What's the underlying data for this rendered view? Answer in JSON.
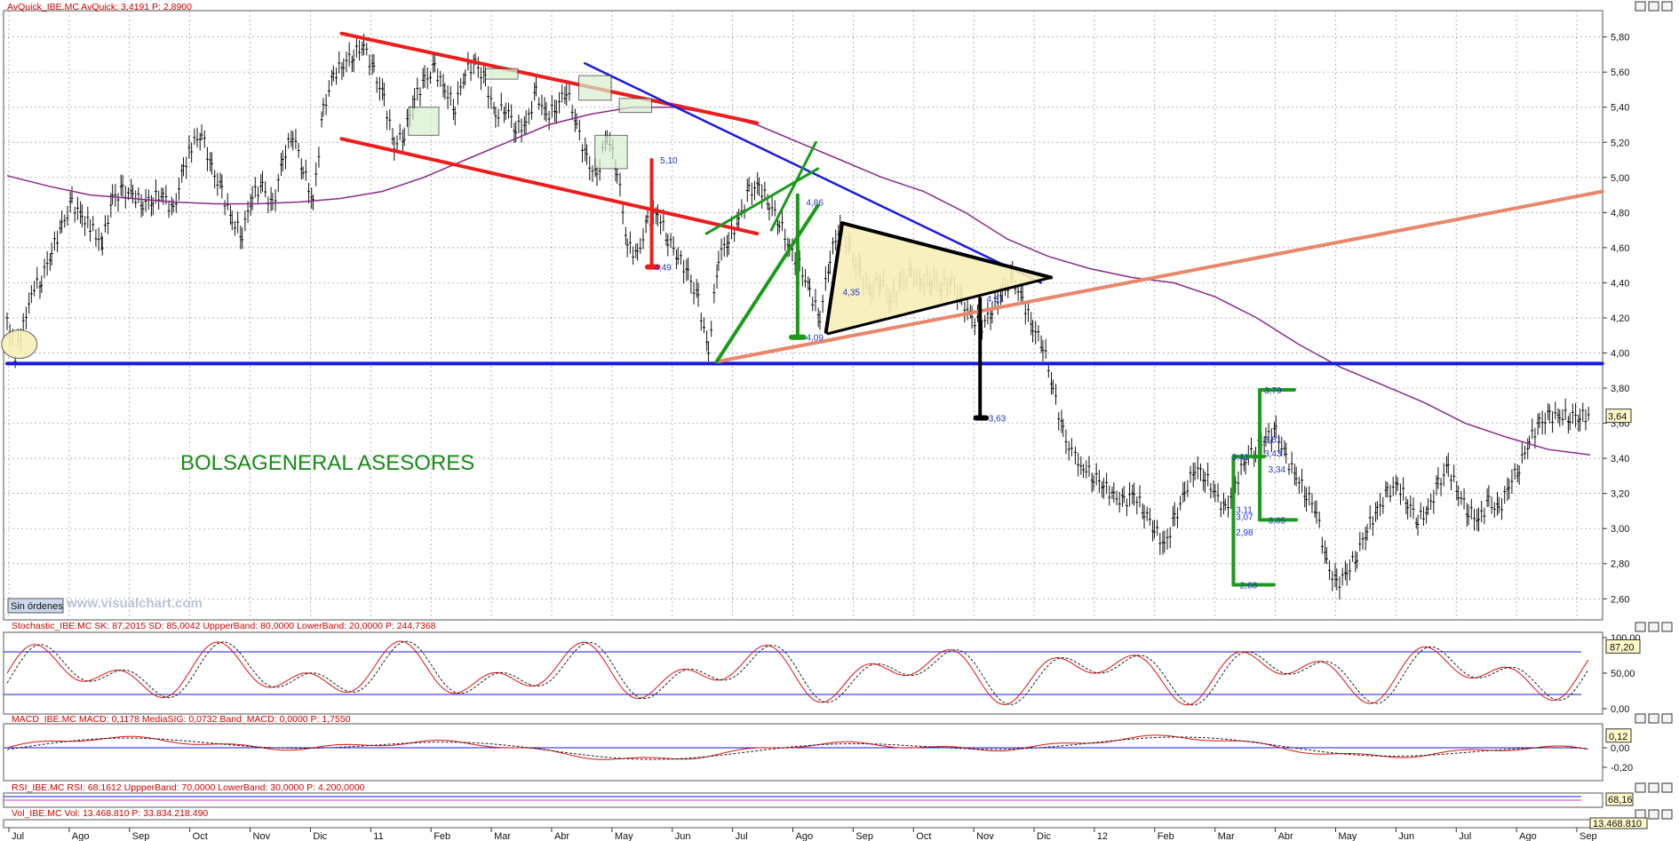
{
  "header": {
    "main": "AvQuick_IBE.MC  AvQuick: 3,4191  P: 2,8900",
    "stoch": "Stochastic_IBE.MC  SK: 87,2015  SD: 85,0042  UppperBand: 80,0000  LowerBand: 20,0000  P: 244,7368",
    "macd": "MACD_IBE.MC  MACD: 0,1178  MediaSIG: 0,0732  Band_MACD: 0,0000  P: 1,7550",
    "rsi": "RSI_IBE.MC  RSI: 68,1612  UppperBand: 70,0000  LowerBand: 30,0000  P: 4.200,0000",
    "vol": "Vol_IBE.MC  Vol: 13.468.810  P: 33.834.218.490"
  },
  "brand_text": "BOLSAGENERAL ASESORES",
  "watermark": "www.visualchart.com",
  "button_label": "Sin órdenes",
  "colors": {
    "price": "#111111",
    "avg": "#8a2a8a",
    "red": "#ee1c1c",
    "blue": "#1a1ae0",
    "green": "#1a9a1a",
    "salmon": "#e8876a",
    "black": "#000000",
    "stoch_k": "#dd1111",
    "band": "#1a1ae0"
  },
  "chart_data": {
    "type": "line",
    "title": "",
    "xlabel": "",
    "ylabel": "",
    "ylim": [
      2.48,
      5.95
    ],
    "y_ticks": [
      "5,80",
      "5,60",
      "5,40",
      "5,20",
      "5,00",
      "4,80",
      "4,60",
      "4,40",
      "4,20",
      "4,00",
      "3,80",
      "3,60",
      "3,40",
      "3,20",
      "3,00",
      "2,80",
      "2,60"
    ],
    "x_ticks": [
      "Jul",
      "Ago",
      "Sep",
      "Oct",
      "Nov",
      "Dic",
      "11",
      "Feb",
      "Mar",
      "Abr",
      "May",
      "Jun",
      "Jul",
      "Ago",
      "Sep",
      "Oct",
      "Nov",
      "Dic",
      "12",
      "Feb",
      "Mar",
      "Abr",
      "May",
      "Jun",
      "Jul",
      "Ago",
      "Sep"
    ],
    "grid": true,
    "last_price_label": "3,64",
    "series": [
      {
        "x": [
          0,
          4,
          8,
          12,
          17,
          22,
          27,
          32,
          37,
          41,
          47,
          52,
          57,
          62,
          67,
          72,
          77,
          82,
          87,
          91,
          96,
          101,
          106,
          111,
          116,
          121,
          126,
          131,
          136,
          141,
          146,
          151,
          156,
          161,
          166,
          171,
          176,
          181,
          186,
          191,
          196,
          201,
          206,
          211,
          216,
          221,
          226,
          231,
          236,
          241,
          246,
          251,
          256,
          261,
          266,
          271,
          276,
          281,
          286,
          291,
          296,
          301,
          306,
          311,
          316,
          321,
          326,
          331,
          336,
          341,
          346,
          351,
          356,
          361,
          366,
          371,
          376,
          381,
          386,
          391,
          396,
          401,
          406,
          411,
          416,
          421,
          426,
          431,
          436,
          441,
          446,
          451,
          456,
          461,
          466,
          471,
          476,
          481,
          486,
          491,
          496,
          501,
          506,
          511,
          516,
          521,
          526
        ],
        "values": [
          4.2,
          3.98,
          4.15,
          4.35,
          4.42,
          4.58,
          4.72,
          4.85,
          4.78,
          4.72,
          4.62,
          4.88,
          4.92,
          4.9,
          4.85,
          4.88,
          4.9,
          4.8,
          5.05,
          5.18,
          5.25,
          5.05,
          4.92,
          4.75,
          4.68,
          4.9,
          4.95,
          4.82,
          5.1,
          5.25,
          5.05,
          4.86,
          5.38,
          5.58,
          5.65,
          5.7,
          5.75,
          5.6,
          5.45,
          5.18,
          5.25,
          5.45,
          5.55,
          5.62,
          5.5,
          5.4,
          5.6,
          5.65,
          5.55,
          5.35,
          5.4,
          5.28,
          5.3,
          5.48,
          5.35,
          5.4,
          5.5,
          5.3,
          5.1,
          5.0,
          5.25,
          5.05,
          4.62,
          4.55,
          4.75,
          4.8,
          4.65,
          4.55,
          4.45,
          4.3,
          4.0,
          4.55,
          4.65,
          4.75,
          4.92,
          4.95,
          4.85,
          4.75,
          4.6,
          4.5,
          4.35,
          4.2,
          4.55,
          4.72,
          4.58,
          4.45,
          4.35,
          4.42,
          4.3,
          4.4,
          4.45,
          4.4,
          4.42,
          4.38,
          4.4,
          4.3,
          4.2,
          4.15,
          4.25,
          4.35,
          4.42,
          4.3,
          4.15,
          4.05,
          3.8,
          3.55,
          3.4
        ]
      },
      {
        "x": [
          527,
          531,
          536,
          541,
          546,
          551,
          556,
          561,
          566,
          571,
          576,
          581,
          586,
          591,
          596,
          601,
          606,
          611,
          616,
          621,
          626,
          631,
          636,
          641,
          646,
          651,
          656,
          661,
          666,
          671,
          676,
          681,
          686,
          691,
          696,
          701,
          706,
          711,
          716,
          721,
          726,
          731,
          736,
          741,
          746,
          751,
          756,
          761,
          766,
          771,
          776,
          781
        ],
        "values": [
          3.4,
          3.35,
          3.3,
          3.25,
          3.18,
          3.15,
          3.2,
          3.1,
          3.0,
          2.9,
          3.05,
          3.2,
          3.35,
          3.3,
          3.2,
          3.1,
          3.25,
          3.4,
          3.45,
          3.52,
          3.55,
          3.4,
          3.3,
          3.2,
          3.1,
          2.8,
          2.68,
          2.75,
          2.85,
          3.0,
          3.1,
          3.2,
          3.25,
          3.15,
          3.05,
          3.1,
          3.25,
          3.35,
          3.2,
          3.1,
          3.05,
          3.15,
          3.1,
          3.25,
          3.35,
          3.5,
          3.6,
          3.64,
          3.64,
          3.64,
          3.64,
          3.64
        ]
      }
    ],
    "moving_average": [
      5.01,
      4.95,
      4.9,
      4.88,
      4.86,
      4.85,
      4.85,
      4.86,
      4.88,
      4.92,
      5.0,
      5.1,
      5.2,
      5.3,
      5.36,
      5.4,
      5.4,
      5.36,
      5.3,
      5.2,
      5.1,
      5.0,
      4.92,
      4.8,
      4.65,
      4.55,
      4.48,
      4.43,
      4.4,
      4.32,
      4.2,
      4.05,
      3.92,
      3.82,
      3.72,
      3.6,
      3.52,
      3.45,
      3.42
    ],
    "annotations": [
      "5,10",
      "4,49",
      "4,86",
      "4,09",
      "4,35",
      "4,31",
      "3,63",
      "3,79",
      "3,51",
      "3,41",
      "3,43",
      "3,34",
      "3,11",
      "3,07",
      "3,05",
      "2,98",
      "2,68"
    ],
    "indicators": {
      "stochastic": {
        "upper": 80,
        "lower": 20,
        "last": "87,20",
        "ticks": [
          "100,00",
          "50,00",
          "0,00"
        ]
      },
      "macd": {
        "last": "0,12",
        "ticks": [
          "0,00",
          "-0,20"
        ]
      },
      "rsi": {
        "last": "68,16"
      },
      "volume": {
        "last": "13.468.810"
      }
    }
  }
}
